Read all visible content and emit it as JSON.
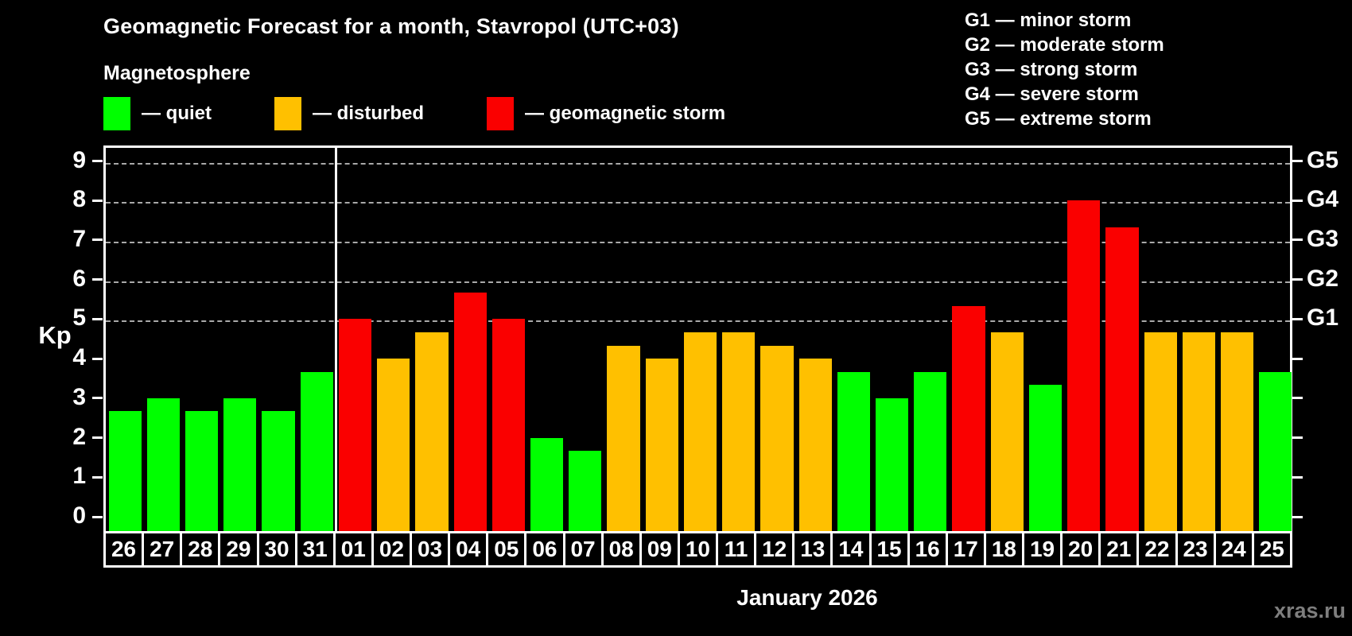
{
  "title": "Geomagnetic Forecast for a month, Stavropol (UTC+03)",
  "subtitle": "Magnetosphere",
  "legend": [
    {
      "key": "quiet",
      "label": "— quiet",
      "color": "#00ff00"
    },
    {
      "key": "disturbed",
      "label": "— disturbed",
      "color": "#ffc000"
    },
    {
      "key": "storm",
      "label": "— geomagnetic storm",
      "color": "#fa0000"
    }
  ],
  "g_legend": [
    "G1 — minor storm",
    "G2 — moderate storm",
    "G3 — strong storm",
    "G4 — severe storm",
    "G5 — extreme storm"
  ],
  "axis": {
    "ylabel": "Kp",
    "yticks": [
      0,
      1,
      2,
      3,
      4,
      5,
      6,
      7,
      8,
      9
    ],
    "g_labels": [
      {
        "kp": 5,
        "text": "G1"
      },
      {
        "kp": 6,
        "text": "G2"
      },
      {
        "kp": 7,
        "text": "G3"
      },
      {
        "kp": 8,
        "text": "G4"
      },
      {
        "kp": 9,
        "text": "G5"
      }
    ]
  },
  "xlabel": "January 2026",
  "watermark": "xras.ru",
  "chart_data": {
    "type": "bar",
    "title": "Geomagnetic Forecast for a month, Stavropol (UTC+03)",
    "xlabel": "January 2026",
    "ylabel": "Kp",
    "ylim": [
      0,
      9
    ],
    "grid_kp": [
      5,
      6,
      7,
      8,
      9
    ],
    "grid": "dashed horizontal at Kp 5-9 only",
    "legend_position": "top-left",
    "month_separator_after_index": 5,
    "categories": [
      "26",
      "27",
      "28",
      "29",
      "30",
      "31",
      "01",
      "02",
      "03",
      "04",
      "05",
      "06",
      "07",
      "08",
      "09",
      "10",
      "11",
      "12",
      "13",
      "14",
      "15",
      "16",
      "17",
      "18",
      "19",
      "20",
      "21",
      "22",
      "23",
      "24",
      "25"
    ],
    "values": [
      2.67,
      3,
      2.67,
      3,
      2.67,
      3.67,
      5,
      4,
      4.67,
      5.67,
      5,
      2,
      1.67,
      4.33,
      4,
      4.67,
      4.67,
      4.33,
      4,
      3.67,
      3,
      3.67,
      5.33,
      4.67,
      3.33,
      8,
      7.33,
      4.67,
      4.67,
      4.67,
      3.67
    ],
    "statuses": [
      "quiet",
      "quiet",
      "quiet",
      "quiet",
      "quiet",
      "quiet",
      "storm",
      "disturbed",
      "disturbed",
      "storm",
      "storm",
      "quiet",
      "quiet",
      "disturbed",
      "disturbed",
      "disturbed",
      "disturbed",
      "disturbed",
      "disturbed",
      "quiet",
      "quiet",
      "quiet",
      "storm",
      "disturbed",
      "quiet",
      "storm",
      "storm",
      "disturbed",
      "disturbed",
      "disturbed",
      "quiet"
    ],
    "colors": {
      "quiet": "#00ff00",
      "disturbed": "#ffc000",
      "storm": "#fa0000"
    }
  }
}
